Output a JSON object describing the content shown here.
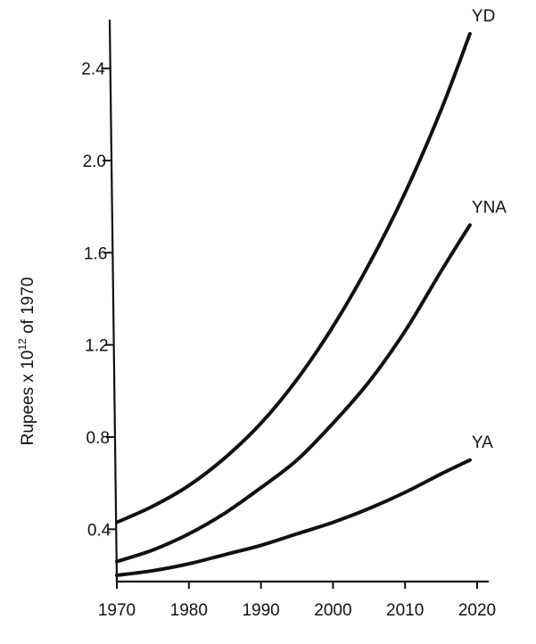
{
  "chart_data": {
    "type": "line",
    "xlabel": "",
    "ylabel": {
      "prefix": "Rupees x 10",
      "exponent": "12",
      "suffix": " of 1970"
    },
    "xlim": [
      1970,
      2020
    ],
    "ylim": [
      0.2,
      2.6
    ],
    "x_ticks": [
      "1970",
      "1980",
      "1990",
      "2000",
      "2010",
      "2020"
    ],
    "y_ticks": [
      "0.4",
      "0.8",
      "1.2",
      "1.6",
      "2.0",
      "2.4"
    ],
    "grid": false,
    "series": [
      {
        "name": "YD",
        "x": [
          1970,
          1975,
          1980,
          1985,
          1990,
          1995,
          2000,
          2005,
          2010,
          2015,
          2019
        ],
        "y": [
          0.43,
          0.5,
          0.59,
          0.71,
          0.86,
          1.05,
          1.28,
          1.55,
          1.86,
          2.22,
          2.55
        ]
      },
      {
        "name": "YNA",
        "x": [
          1970,
          1975,
          1980,
          1985,
          1990,
          1995,
          2000,
          2005,
          2010,
          2015,
          2019
        ],
        "y": [
          0.26,
          0.31,
          0.38,
          0.47,
          0.58,
          0.7,
          0.86,
          1.04,
          1.26,
          1.52,
          1.72
        ]
      },
      {
        "name": "YA",
        "x": [
          1970,
          1975,
          1980,
          1985,
          1990,
          1995,
          2000,
          2005,
          2010,
          2015,
          2019
        ],
        "y": [
          0.2,
          0.22,
          0.25,
          0.29,
          0.33,
          0.38,
          0.43,
          0.49,
          0.56,
          0.64,
          0.7
        ]
      }
    ]
  }
}
